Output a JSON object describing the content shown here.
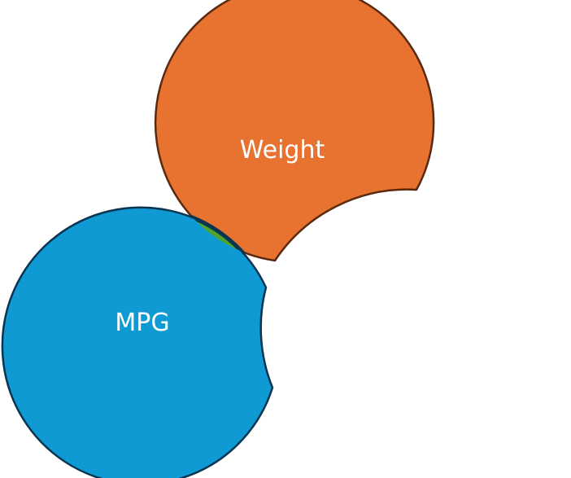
{
  "diagram": {
    "type": "venn",
    "sets": [
      {
        "label": "Weight",
        "color": "#E8722F"
      },
      {
        "label": "MPG",
        "color": "#0F9AD4"
      }
    ],
    "intersection_color": "#4FA32F",
    "outline_colors": {
      "weight": "#5A2A10",
      "mpg": "#0A3550"
    },
    "background": "#FFFFFF"
  }
}
